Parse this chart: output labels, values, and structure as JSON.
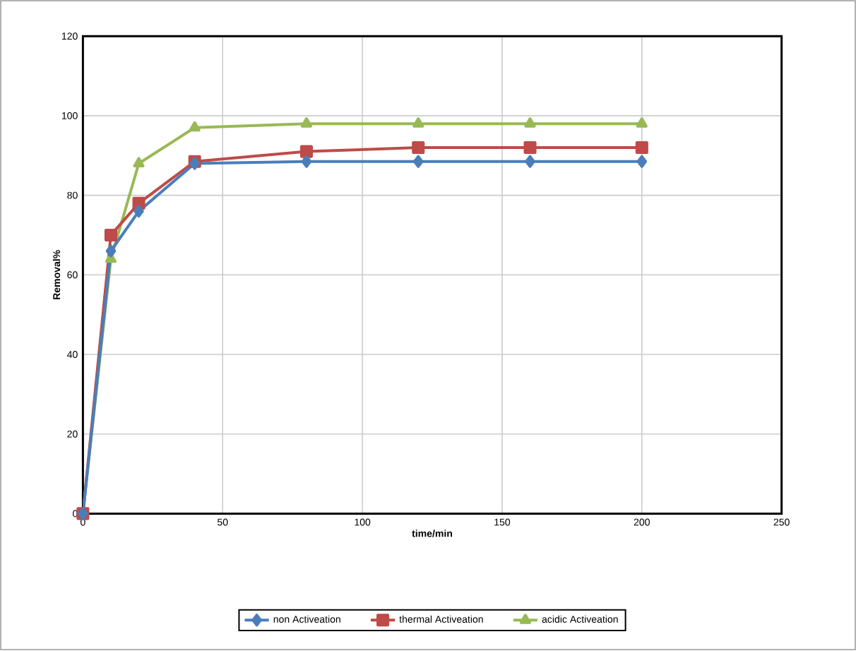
{
  "chart_data": {
    "type": "line",
    "xlabel": "time/min",
    "ylabel": "Removal%",
    "x": [
      0,
      10,
      20,
      40,
      80,
      120,
      160,
      200
    ],
    "series": [
      {
        "name": "non Activeation",
        "color": "#4a7ebb",
        "marker": "diamond",
        "values": [
          0,
          66,
          76,
          88,
          88.5,
          88.5,
          88.5,
          88.5
        ]
      },
      {
        "name": "thermal Activeation",
        "color": "#be4b48",
        "marker": "square",
        "values": [
          0,
          70,
          78,
          88.5,
          91,
          92,
          92,
          92
        ]
      },
      {
        "name": "acidic Activeation",
        "color": "#98b954",
        "marker": "triangle",
        "values": [
          0,
          64,
          88,
          97,
          98,
          98,
          98,
          98
        ]
      }
    ],
    "xlim": [
      0,
      250
    ],
    "xticks": [
      0,
      50,
      100,
      150,
      200,
      250
    ],
    "ylim": [
      0,
      120
    ],
    "yticks": [
      0,
      20,
      40,
      60,
      80,
      100,
      120
    ],
    "grid": true,
    "legend": "bottom"
  }
}
